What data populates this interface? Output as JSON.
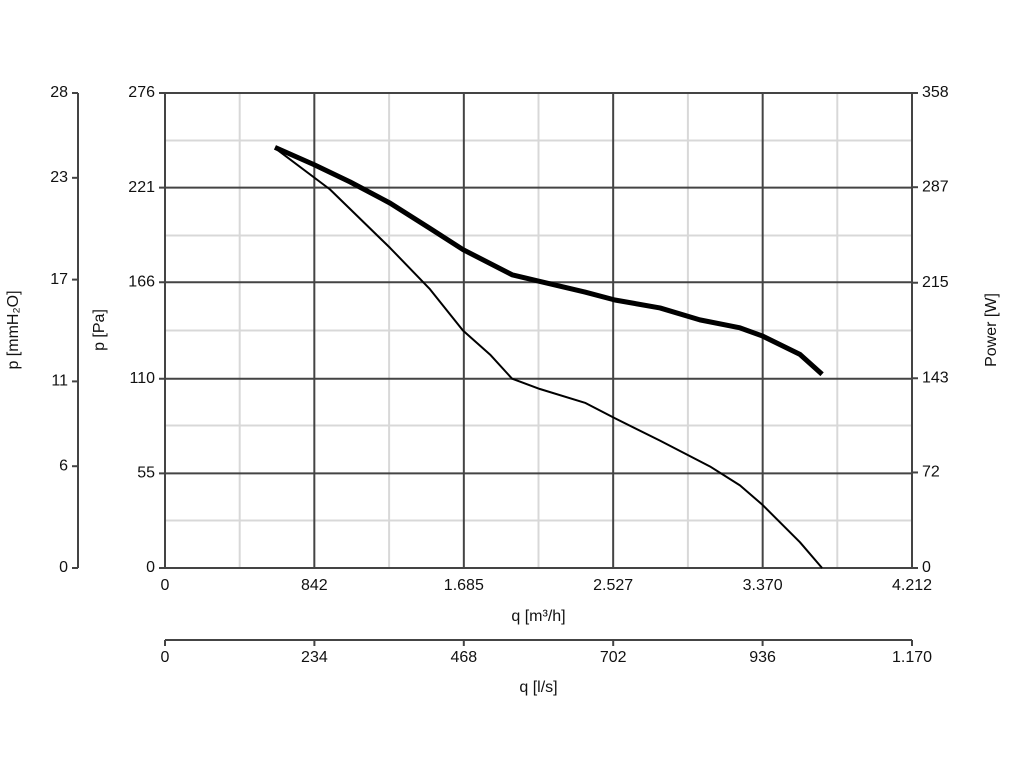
{
  "chart_data": {
    "type": "line",
    "xlabel": "q [m³/h]",
    "ylabel": "p [Pa]",
    "y2label": "Power [W]",
    "y3label": "p [mmH₂O]",
    "x2label": "q [l/s]",
    "xlim": [
      0,
      4212
    ],
    "xticks": [
      0,
      842,
      {
        "value": 1685,
        "label": "1.685"
      },
      {
        "value": 2527,
        "label": "2.527"
      },
      {
        "value": 3370,
        "label": "3.370"
      },
      {
        "value": 4212,
        "label": "4.212"
      }
    ],
    "x2lim": [
      0,
      1170
    ],
    "x2ticks": [
      0,
      234,
      468,
      702,
      936,
      {
        "value": 1170,
        "label": "1.170"
      }
    ],
    "ylim": [
      0,
      276
    ],
    "yticks": [
      0,
      55,
      110,
      166,
      221,
      276
    ],
    "y2lim": [
      0,
      358
    ],
    "y2ticks": [
      0,
      72,
      143,
      215,
      287,
      358
    ],
    "y3lim": [
      0,
      28
    ],
    "y3ticks": [
      0,
      6,
      11,
      17,
      23,
      28
    ],
    "grid": true,
    "series": [
      {
        "color": "#000000",
        "x": [
          620,
          930,
          1269,
          1494,
          1680,
          1833,
          1957,
          2114,
          2368,
          2537,
          2791,
          3073,
          3242,
          3366,
          3580,
          3705
        ],
        "values": [
          244,
          220,
          186,
          162,
          138,
          124,
          110,
          104,
          96,
          87,
          74,
          59,
          48,
          37,
          15,
          0
        ]
      },
      {
        "color": "#000000",
        "axis": "y2",
        "x": [
          620,
          840,
          1043,
          1269,
          1494,
          1680,
          1957,
          2114,
          2368,
          2537,
          2791,
          3016,
          3242,
          3366,
          3580,
          3705
        ],
        "values": [
          317,
          304,
          291,
          275,
          256,
          240,
          221,
          216,
          208,
          202,
          196,
          187,
          181,
          175,
          161,
          146
        ]
      }
    ]
  }
}
